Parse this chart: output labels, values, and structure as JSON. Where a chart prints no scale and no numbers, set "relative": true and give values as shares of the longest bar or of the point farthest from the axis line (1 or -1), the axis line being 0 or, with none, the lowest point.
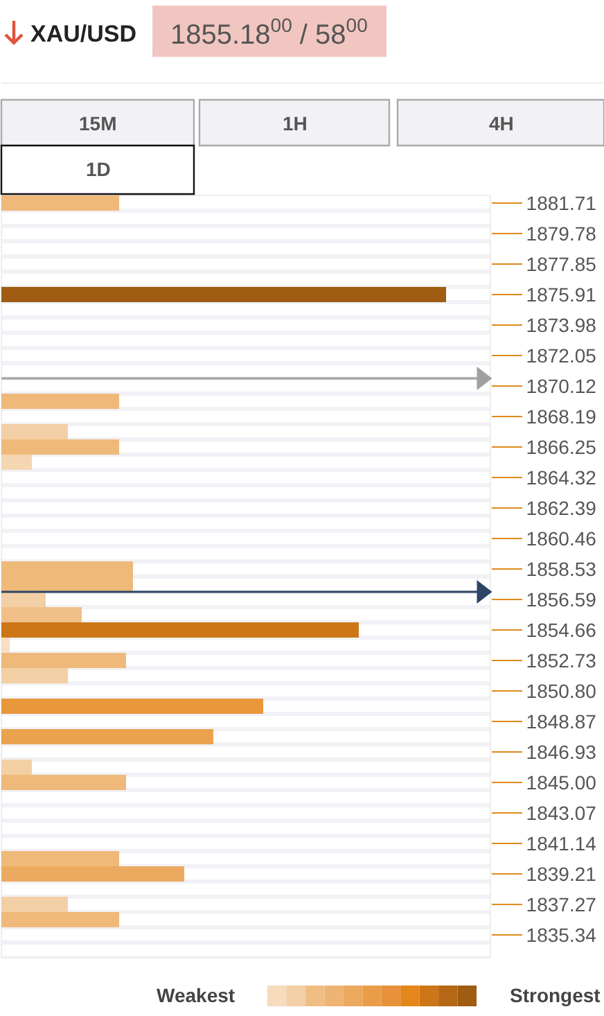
{
  "chart_data": [
    {
      "type": "bar",
      "orientation": "horizontal",
      "relative": true,
      "title": "XAU/USD",
      "subtitle": "1855.18$^{00}$ / 58$^{00}$",
      "annotations": [
        "15M",
        "1H",
        "4H",
        "1D"
      ],
      "categories": [
        "1881.71",
        null,
        "1879.78",
        null,
        "1877.85",
        null,
        "1875.91",
        null,
        "1873.98",
        null,
        "1872.05",
        null,
        "1870.12",
        null,
        "1868.19",
        null,
        "1866.25",
        null,
        "1864.32",
        null,
        "1862.39",
        null,
        "1860.46",
        null,
        "1858.53",
        null,
        "1856.59",
        null,
        "1854.66",
        null,
        "1852.73",
        null,
        "1850.80",
        null,
        "1848.87",
        null,
        "1846.93",
        null,
        "1845.00",
        null,
        "1843.07",
        null,
        "1841.14",
        null,
        "1839.21",
        null,
        "1837.27",
        null,
        "1835.34",
        null
      ],
      "values": [
        0.265,
        null,
        null,
        null,
        null,
        null,
        1,
        null,
        null,
        null,
        null,
        null,
        null,
        0.265,
        null,
        0.15,
        0.265,
        0.069,
        null,
        null,
        null,
        null,
        null,
        null,
        0.296,
        0.296,
        0.1,
        0.181,
        0.804,
        0.019,
        0.28,
        0.15,
        null,
        0.589,
        null,
        0.477,
        null,
        0.069,
        0.28,
        null,
        null,
        null,
        null,
        0.265,
        0.411,
        null,
        0.15,
        0.265,
        null,
        null
      ],
      "colors": [
        "#efb979",
        null,
        null,
        null,
        null,
        null,
        "#9f5c12",
        null,
        null,
        null,
        null,
        null,
        null,
        "#efb979",
        null,
        "#f3cfa5",
        "#efb979",
        "#f5d6b3",
        null,
        null,
        null,
        null,
        null,
        null,
        "#efb979",
        "#efb979",
        "#f3cfa5",
        "#f0c088",
        "#cd7617",
        "#f7dfc5",
        "#efb979",
        "#f3cfa5",
        null,
        "#e8973a",
        null,
        "#eaa24f",
        null,
        "#f3cfa5",
        "#efb979",
        null,
        null,
        null,
        null,
        "#efb979",
        "#ecaa60",
        null,
        "#f3cfa5",
        "#efb979",
        null,
        null
      ],
      "ref_lines": [
        {
          "axis": "y",
          "value": "1870.12",
          "color": "#a0a0a0"
        },
        {
          "axis": "y",
          "value": "1856.59",
          "color": "#2c4466"
        }
      ],
      "grid": true
    },
    {
      "type": "other",
      "annotations": [
        "Weakest",
        "Strongest"
      ],
      "colors": [
        "#f6dbbd",
        "#f3cfa5",
        "#f0be84",
        "#eeb474",
        "#eca95e",
        "#e99d48",
        "#e7913a",
        "#e3861c",
        "#cd7617",
        "#b56715",
        "#9f5c12"
      ]
    }
  ]
}
